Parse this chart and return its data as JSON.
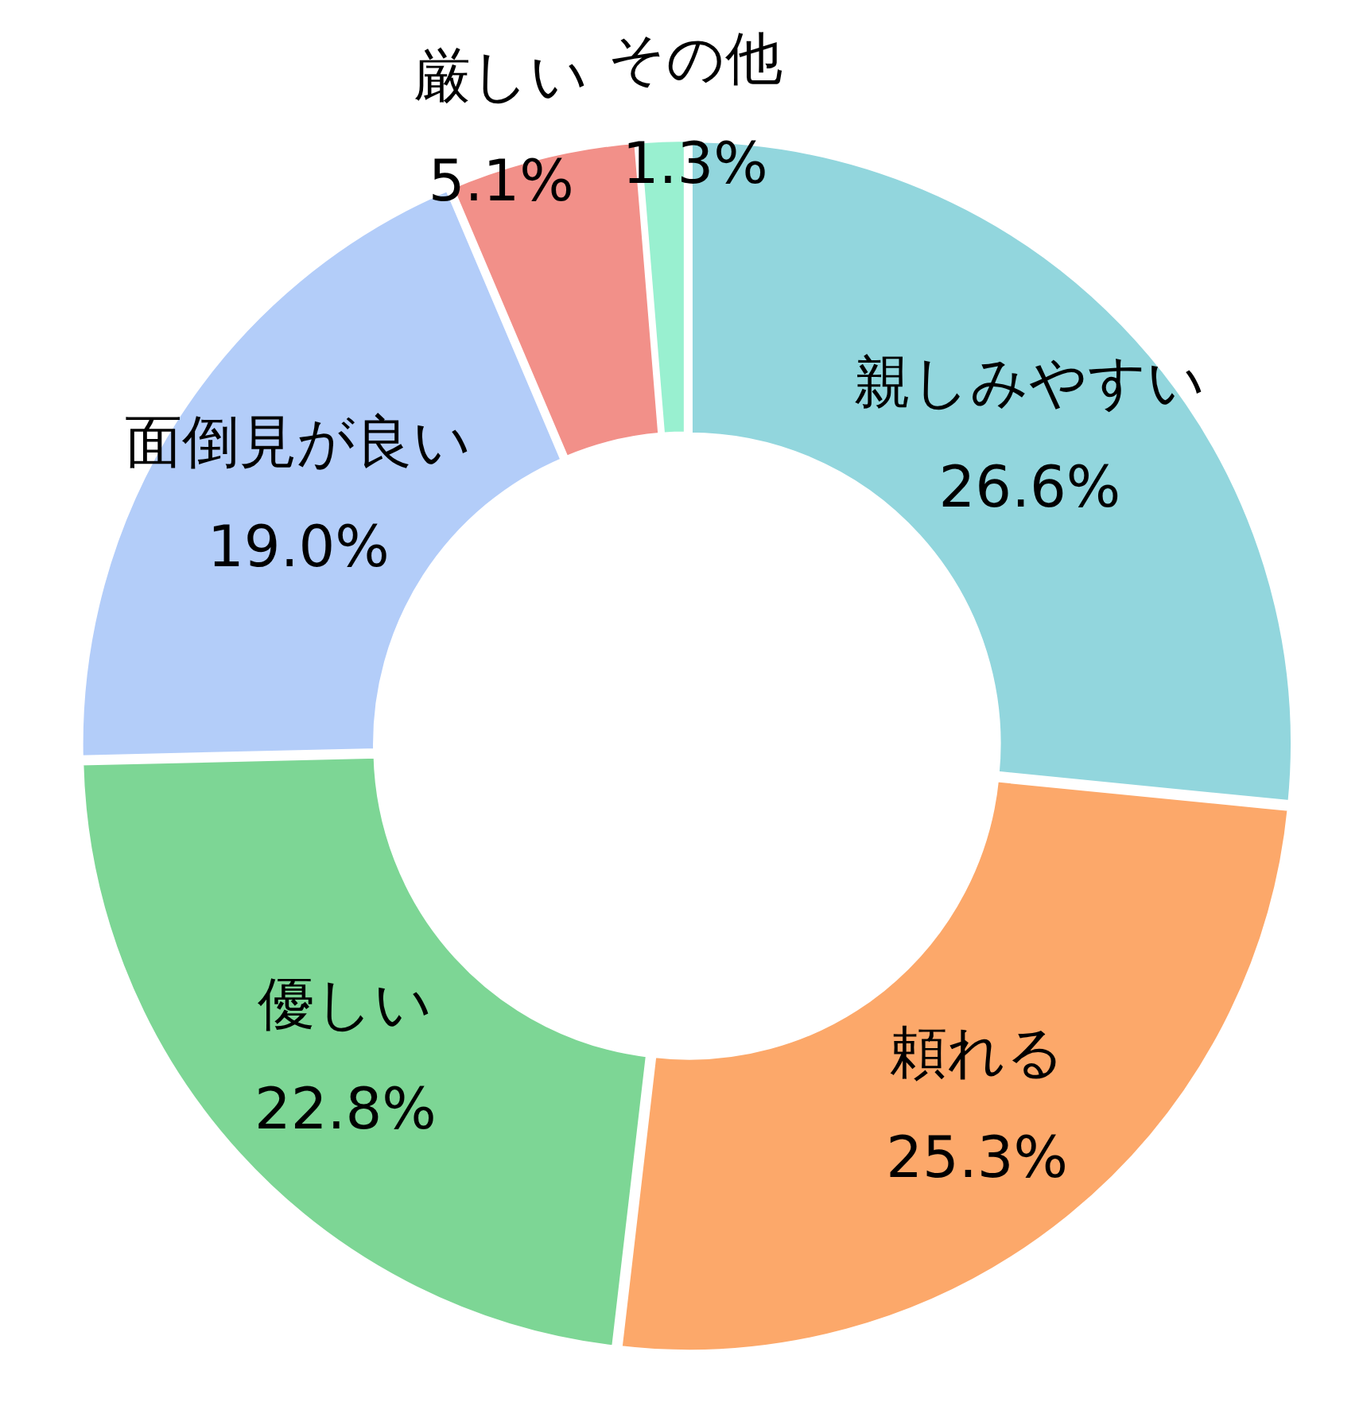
{
  "chart_data": {
    "type": "donut",
    "categories": [
      "親しみやすい",
      "頼れる",
      "優しい",
      "面倒見が良い",
      "厳しい",
      "その他"
    ],
    "values": [
      26.6,
      25.3,
      22.8,
      19.0,
      5.1,
      1.3
    ],
    "colors": [
      "#92d6dd",
      "#fca86a",
      "#7dd695",
      "#b3cdf9",
      "#f29089",
      "#99f0d0"
    ],
    "value_labels": [
      "26.6%",
      "25.3%",
      "22.8%",
      "19.0%",
      "5.1%",
      "1.3%"
    ]
  }
}
